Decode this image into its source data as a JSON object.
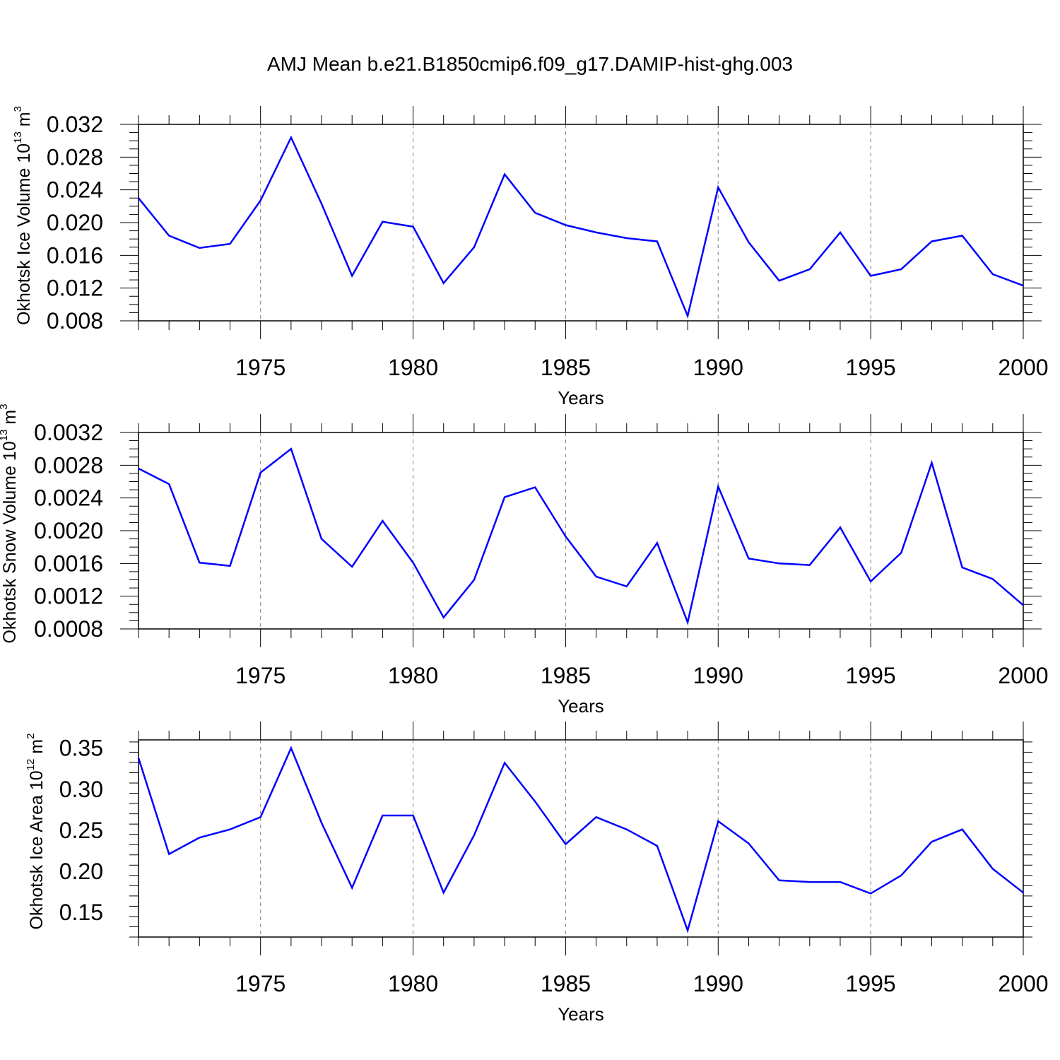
{
  "title": "AMJ Mean b.e21.B1850cmip6.f09_g17.DAMIP-hist-ghg.003",
  "colors": {
    "series": "#0000ff",
    "axis": "#000000",
    "grid": "#808080"
  },
  "chart_data": [
    {
      "type": "line",
      "ylabel_text": "Okhotsk Ice Volume 10",
      "ylabel_exp": "13",
      "ylabel_unit": " m",
      "ylabel_unit_exp": "3",
      "xlabel": "Years",
      "xlim": [
        1971,
        2000
      ],
      "ylim": [
        0.008,
        0.032
      ],
      "y_ticks": [
        "0.008",
        "0.012",
        "0.016",
        "0.020",
        "0.024",
        "0.028",
        "0.032"
      ],
      "x_ticks": [
        "1975",
        "1980",
        "1985",
        "1990",
        "1995",
        "2000"
      ],
      "x": [
        1971,
        1972,
        1973,
        1974,
        1975,
        1976,
        1977,
        1978,
        1979,
        1980,
        1981,
        1982,
        1983,
        1984,
        1985,
        1986,
        1987,
        1988,
        1989,
        1990,
        1991,
        1992,
        1993,
        1994,
        1995,
        1996,
        1997,
        1998,
        1999,
        2000
      ],
      "values": [
        0.023,
        0.0184,
        0.0169,
        0.0174,
        0.0227,
        0.0304,
        0.0223,
        0.0135,
        0.0201,
        0.0195,
        0.0126,
        0.017,
        0.0259,
        0.0212,
        0.0197,
        0.0188,
        0.0181,
        0.0177,
        0.0086,
        0.0243,
        0.0176,
        0.0129,
        0.0143,
        0.0188,
        0.0135,
        0.0143,
        0.0177,
        0.0184,
        0.0137,
        0.0123
      ]
    },
    {
      "type": "line",
      "ylabel_text": "Okhotsk Snow Volume 10",
      "ylabel_exp": "13",
      "ylabel_unit": " m",
      "ylabel_unit_exp": "3",
      "xlabel": "Years",
      "xlim": [
        1971,
        2000
      ],
      "ylim": [
        0.0008,
        0.0032
      ],
      "y_ticks": [
        "0.0008",
        "0.0012",
        "0.0016",
        "0.0020",
        "0.0024",
        "0.0028",
        "0.0032"
      ],
      "x_ticks": [
        "1975",
        "1980",
        "1985",
        "1990",
        "1995",
        "2000"
      ],
      "x": [
        1971,
        1972,
        1973,
        1974,
        1975,
        1976,
        1977,
        1978,
        1979,
        1980,
        1981,
        1982,
        1983,
        1984,
        1985,
        1986,
        1987,
        1988,
        1989,
        1990,
        1991,
        1992,
        1993,
        1994,
        1995,
        1996,
        1997,
        1998,
        1999,
        2000
      ],
      "values": [
        0.00276,
        0.00257,
        0.00161,
        0.00157,
        0.00271,
        0.003,
        0.0019,
        0.00156,
        0.00212,
        0.00161,
        0.00094,
        0.0014,
        0.00241,
        0.00253,
        0.00193,
        0.00144,
        0.00132,
        0.00185,
        0.00088,
        0.00254,
        0.00166,
        0.0016,
        0.00158,
        0.00204,
        0.00138,
        0.00173,
        0.00283,
        0.00155,
        0.00141,
        0.00109
      ]
    },
    {
      "type": "line",
      "ylabel_text": "Okhotsk Ice Area 10",
      "ylabel_exp": "12",
      "ylabel_unit": " m",
      "ylabel_unit_exp": "2",
      "xlabel": "Years",
      "xlim": [
        1971,
        2000
      ],
      "ylim": [
        0.12,
        0.36
      ],
      "y_ticks": [
        "0.15",
        "0.20",
        "0.25",
        "0.30",
        "0.35"
      ],
      "x_ticks": [
        "1975",
        "1980",
        "1985",
        "1990",
        "1995",
        "2000"
      ],
      "x": [
        1971,
        1972,
        1973,
        1974,
        1975,
        1976,
        1977,
        1978,
        1979,
        1980,
        1981,
        1982,
        1983,
        1984,
        1985,
        1986,
        1987,
        1988,
        1989,
        1990,
        1991,
        1992,
        1993,
        1994,
        1995,
        1996,
        1997,
        1998,
        1999,
        2000
      ],
      "values": [
        0.338,
        0.221,
        0.241,
        0.251,
        0.266,
        0.35,
        0.259,
        0.18,
        0.268,
        0.268,
        0.174,
        0.244,
        0.332,
        0.285,
        0.233,
        0.266,
        0.251,
        0.231,
        0.128,
        0.261,
        0.234,
        0.189,
        0.187,
        0.187,
        0.173,
        0.195,
        0.236,
        0.251,
        0.203,
        0.174
      ]
    }
  ]
}
